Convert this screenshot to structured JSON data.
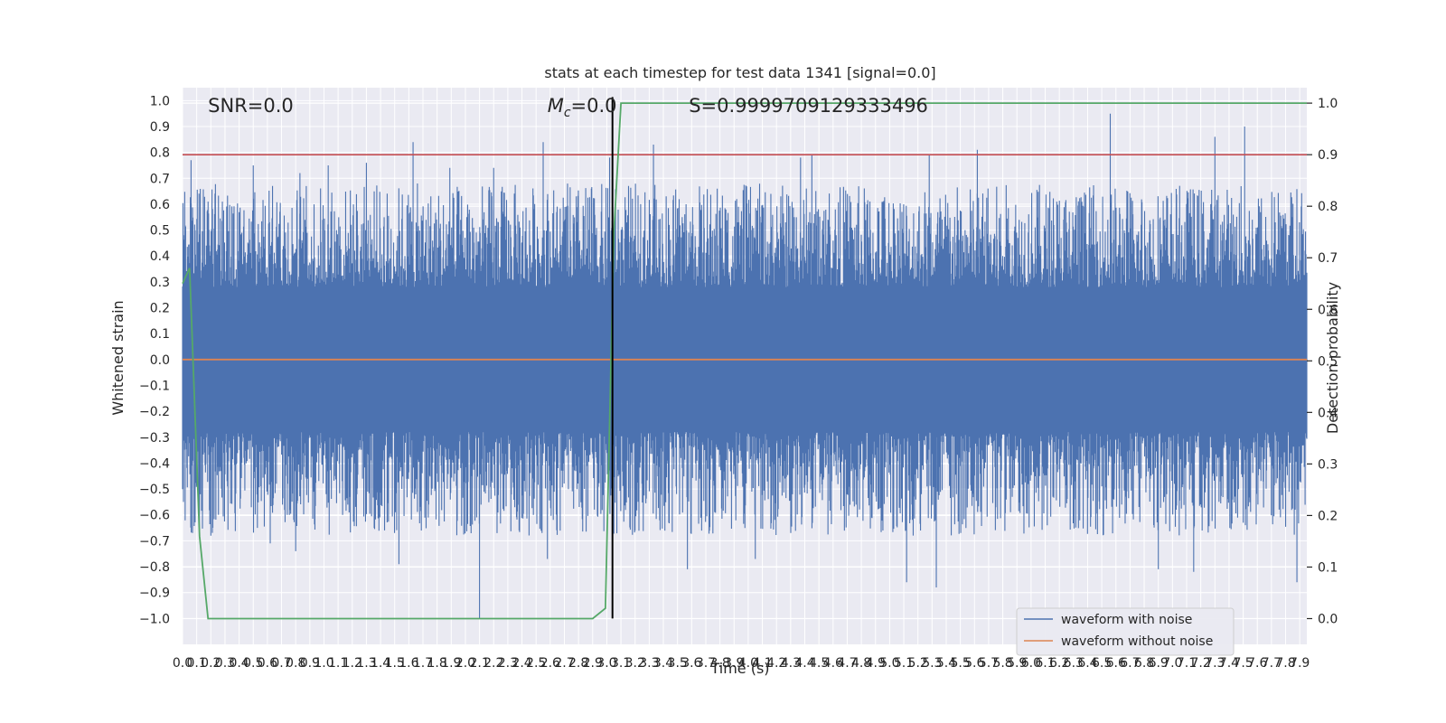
{
  "chart_data": {
    "type": "line",
    "title": "stats at each timestep for test data 1341 [signal=0.0]",
    "xlabel": "Time (s)",
    "ylabel": "Whitened strain",
    "ylabel_right": "Detection probability",
    "xlim": [
      0.0,
      7.95
    ],
    "ylim": [
      -1.1,
      1.05
    ],
    "ylim_right": [
      -0.05,
      1.03
    ],
    "grid": true,
    "x_tick_labels": [
      "0.0",
      "0.1",
      "0.2",
      "0.3",
      "0.4",
      "0.5",
      "0.6",
      "0.7",
      "0.8",
      "0.9",
      "1.0",
      "1.1",
      "1.2",
      "1.3",
      "1.4",
      "1.5",
      "1.6",
      "1.7",
      "1.8",
      "1.9",
      "2.0",
      "2.1",
      "2.2",
      "2.3",
      "2.4",
      "2.5",
      "2.6",
      "2.7",
      "2.8",
      "2.9",
      "3.0",
      "3.1",
      "3.2",
      "3.3",
      "3.4",
      "3.5",
      "3.6",
      "3.7",
      "3.8",
      "3.9",
      "4.0",
      "4.1",
      "4.2",
      "4.3",
      "4.4",
      "4.5",
      "4.6",
      "4.7",
      "4.8",
      "4.9",
      "5.0",
      "5.1",
      "5.2",
      "5.3",
      "5.4",
      "5.5",
      "5.6",
      "5.7",
      "5.8",
      "5.9",
      "6.0",
      "6.1",
      "6.2",
      "6.3",
      "6.4",
      "6.5",
      "6.6",
      "6.7",
      "6.8",
      "6.9",
      "7.0",
      "7.1",
      "7.2",
      "7.3",
      "7.4",
      "7.5",
      "7.6",
      "7.7",
      "7.8",
      "7.9"
    ],
    "y_tick_labels": [
      "−1.0",
      "−0.9",
      "−0.8",
      "−0.7",
      "−0.6",
      "−0.5",
      "−0.4",
      "−0.3",
      "−0.2",
      "−0.1",
      "0.0",
      "0.1",
      "0.2",
      "0.3",
      "0.4",
      "0.5",
      "0.6",
      "0.7",
      "0.8",
      "0.9",
      "1.0"
    ],
    "y_tick_values": [
      -1.0,
      -0.9,
      -0.8,
      -0.7,
      -0.6,
      -0.5,
      -0.4,
      -0.3,
      -0.2,
      -0.1,
      0.0,
      0.1,
      0.2,
      0.3,
      0.4,
      0.5,
      0.6,
      0.7,
      0.8,
      0.9,
      1.0
    ],
    "y_right_tick_labels": [
      "0.0",
      "0.1",
      "0.2",
      "0.3",
      "0.4",
      "0.5",
      "0.6",
      "0.7",
      "0.8",
      "0.9",
      "1.0"
    ],
    "y_right_tick_values": [
      0.0,
      0.1,
      0.2,
      0.3,
      0.4,
      0.5,
      0.6,
      0.7,
      0.8,
      0.9,
      1.0
    ],
    "series": [
      {
        "name": "waveform with noise",
        "color": "#4c72b0",
        "axis": "left",
        "note_range": [
          -1.0,
          0.95
        ],
        "spikes": [
          {
            "x": 0.06,
            "y": 0.77
          },
          {
            "x": 0.5,
            "y": 0.75
          },
          {
            "x": 0.83,
            "y": 0.72
          },
          {
            "x": 1.03,
            "y": 0.75
          },
          {
            "x": 1.3,
            "y": 0.76
          },
          {
            "x": 1.63,
            "y": 0.84
          },
          {
            "x": 1.89,
            "y": 0.74
          },
          {
            "x": 2.2,
            "y": 0.74
          },
          {
            "x": 2.55,
            "y": 0.84
          },
          {
            "x": 3.02,
            "y": 0.78
          },
          {
            "x": 3.33,
            "y": 0.83
          },
          {
            "x": 4.37,
            "y": 0.78
          },
          {
            "x": 4.45,
            "y": 0.79
          },
          {
            "x": 5.28,
            "y": 0.79
          },
          {
            "x": 5.62,
            "y": 0.81
          },
          {
            "x": 6.56,
            "y": 0.95
          },
          {
            "x": 7.3,
            "y": 0.86
          },
          {
            "x": 7.51,
            "y": 0.9
          },
          {
            "x": 0.2,
            "y": -0.68
          },
          {
            "x": 0.62,
            "y": -0.71
          },
          {
            "x": 0.8,
            "y": -0.74
          },
          {
            "x": 1.53,
            "y": -0.79
          },
          {
            "x": 2.1,
            "y": -1.0
          },
          {
            "x": 2.58,
            "y": -0.77
          },
          {
            "x": 3.57,
            "y": -0.81
          },
          {
            "x": 4.05,
            "y": -0.77
          },
          {
            "x": 5.12,
            "y": -0.86
          },
          {
            "x": 5.33,
            "y": -0.88
          },
          {
            "x": 6.9,
            "y": -0.81
          },
          {
            "x": 7.15,
            "y": -0.82
          },
          {
            "x": 7.88,
            "y": -0.86
          }
        ]
      },
      {
        "name": "waveform without noise",
        "color": "#dd8452",
        "axis": "left",
        "x": [
          0.0,
          7.95
        ],
        "y": [
          0.0,
          0.0
        ]
      },
      {
        "name": "",
        "color": "#55a868",
        "axis": "right",
        "x": [
          0.0,
          0.05,
          0.12,
          0.18,
          2.0,
          2.6,
          2.9,
          2.99,
          3.05,
          3.1,
          3.2,
          4.0,
          7.95
        ],
        "y": [
          0.65,
          0.68,
          0.16,
          0.0,
          0.0,
          0.0,
          0.0,
          0.02,
          0.75,
          1.0,
          1.0,
          1.0,
          1.0
        ]
      }
    ],
    "reference_lines": [
      {
        "orientation": "horizontal",
        "axis": "right",
        "value": 0.9,
        "color": "#c44e52"
      },
      {
        "orientation": "vertical",
        "value": 3.04,
        "color": "#000000"
      }
    ],
    "annotations": [
      {
        "text": "SNR=0.0",
        "x": 0.18
      },
      {
        "text": "M",
        "sub": "c",
        "rest": "=0.0",
        "x": 2.58
      },
      {
        "text": "S=0.9999709129333496",
        "x": 3.58
      }
    ],
    "legend": {
      "position": "lower right",
      "entries": [
        {
          "label": "waveform with noise",
          "color": "#4c72b0"
        },
        {
          "label": "waveform without noise",
          "color": "#dd8452"
        }
      ]
    },
    "colors": {
      "background": "#eaeaf2",
      "grid": "#ffffff"
    }
  }
}
